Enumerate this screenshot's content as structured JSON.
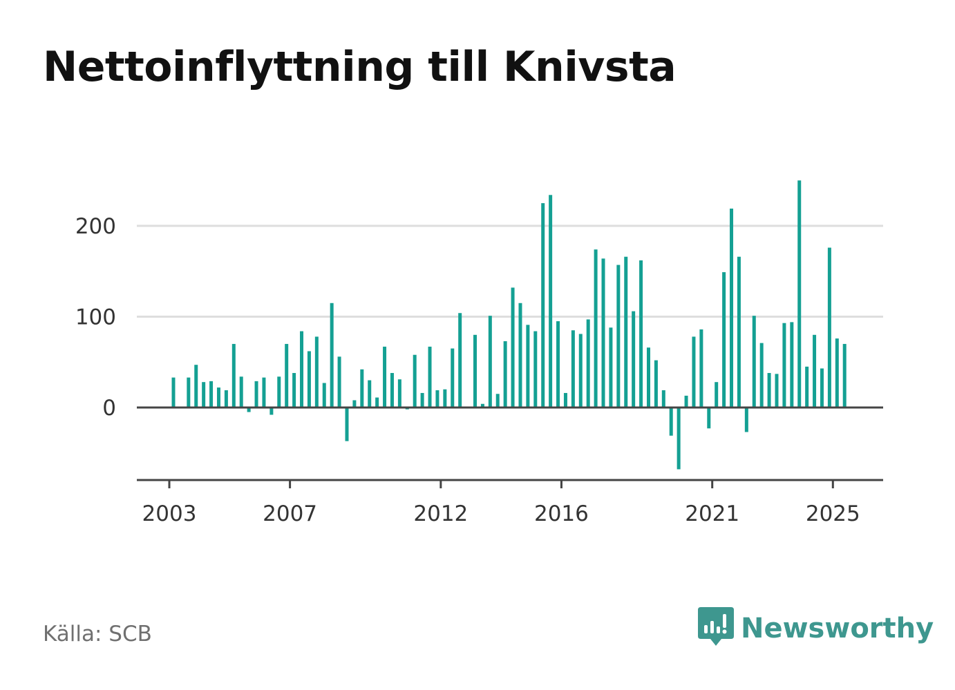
{
  "title": "Nettoinflyttning till Knivsta",
  "source": "Källa: SCB",
  "brand": {
    "name": "Newsworthy",
    "icon": "newsworthy-logo-icon",
    "color": "#3e978f"
  },
  "chart_data": {
    "type": "bar",
    "title": "Nettoinflyttning till Knivsta",
    "xlabel": "",
    "ylabel": "",
    "bar_color": "#14a093",
    "grid": true,
    "ylim": [
      -80,
      250
    ],
    "yticks": [
      0,
      100,
      200
    ],
    "xlim": [
      2002.5,
      2027.0
    ],
    "xticks": [
      2003,
      2007,
      2012,
      2016,
      2021,
      2025
    ],
    "x_start": 2003.0,
    "x_step": 0.25,
    "x_unit": "quarter",
    "values": [
      33,
      0,
      33,
      47,
      28,
      29,
      22,
      19,
      70,
      34,
      -5,
      29,
      33,
      -8,
      34,
      70,
      38,
      84,
      62,
      78,
      27,
      115,
      56,
      -37,
      8,
      42,
      30,
      11,
      67,
      38,
      31,
      -2,
      58,
      16,
      67,
      19,
      20,
      65,
      104,
      0,
      80,
      4,
      101,
      15,
      73,
      132,
      115,
      91,
      84,
      225,
      234,
      95,
      16,
      85,
      81,
      97,
      174,
      164,
      88,
      157,
      166,
      106,
      162,
      66,
      52,
      19,
      -31,
      -68,
      13,
      78,
      86,
      -23,
      28,
      149,
      219,
      166,
      -27,
      101,
      71,
      38,
      37,
      93,
      94,
      250,
      45,
      80,
      43,
      176,
      76,
      70
    ]
  }
}
